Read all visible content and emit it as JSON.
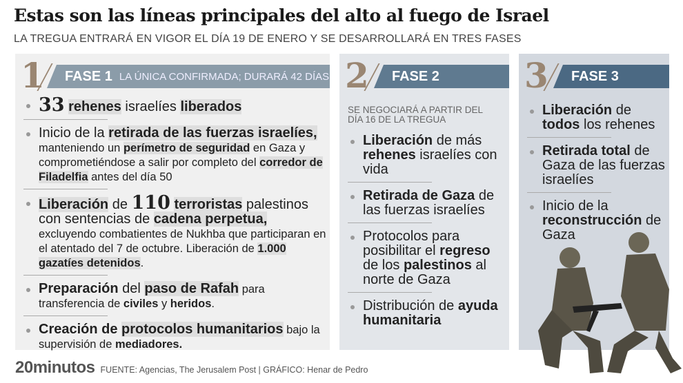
{
  "header": {
    "title": "Estas son las líneas principales del alto al fuego de Israel",
    "subtitle": "LA TREGUA ENTRARÁ EN VIGOR EL DÍA 19 DE ENERO Y SE DESARROLLARÁ EN TRES FASES"
  },
  "colors": {
    "panel1": "#f0f0f0",
    "panel2": "#e3e6ea",
    "panel3": "#d3d8df",
    "band1": "#8b9ca9",
    "band2": "#5f7a90",
    "band3": "#4b6983",
    "numeral": "#9a8672",
    "highlight": "#dedede"
  },
  "phases": [
    {
      "number": "1",
      "label": "FASE 1",
      "sublabel": "LA ÚNICA CONFIRMADA; DURARÁ 42 DÍAS",
      "items": [
        [
          {
            "t": "33",
            "s": "big"
          },
          {
            "t": " "
          },
          {
            "t": "rehenes",
            "s": "b hl"
          },
          {
            "t": " israelíes "
          },
          {
            "t": "liberados",
            "s": "b hl"
          }
        ],
        [
          {
            "t": "Inicio de la "
          },
          {
            "t": "retirada de las fuerzas israelíes,",
            "s": "b hl"
          },
          {
            "t": " manteniendo un ",
            "s": "sm"
          },
          {
            "t": "perímetro de seguridad",
            "s": "sm b hl"
          },
          {
            "t": " en Gaza y comprometiéndose a salir por completo del ",
            "s": "sm"
          },
          {
            "t": "corredor de Filadelfia",
            "s": "sm b hl"
          },
          {
            "t": " antes del día 50",
            "s": "sm"
          }
        ],
        [
          {
            "t": "Liberación",
            "s": "b hl"
          },
          {
            "t": " de "
          },
          {
            "t": "110",
            "s": "big"
          },
          {
            "t": " "
          },
          {
            "t": "terroristas",
            "s": "b hl"
          },
          {
            "t": " palestinos con sentencias de "
          },
          {
            "t": "cadena perpetua,",
            "s": "b hl"
          },
          {
            "t": " excluyendo combatientes de Nukhba que participaran en el atentado del 7 de octubre. Liberación de ",
            "s": "sm"
          },
          {
            "t": "1.000 gazatíes detenidos",
            "s": "sm b hl"
          },
          {
            "t": ".",
            "s": "sm"
          }
        ],
        [
          {
            "t": "Preparación",
            "s": "b"
          },
          {
            "t": " del "
          },
          {
            "t": "paso de Rafah",
            "s": "b hl"
          },
          {
            "t": " para transferencia de ",
            "s": "sm"
          },
          {
            "t": "civiles",
            "s": "sm b"
          },
          {
            "t": " y ",
            "s": "sm"
          },
          {
            "t": "heridos",
            "s": "sm b"
          },
          {
            "t": ".",
            "s": "sm"
          }
        ],
        [
          {
            "t": "Creación de ",
            "s": "b"
          },
          {
            "t": "protocolos humanitarios",
            "s": "b hl"
          },
          {
            "t": " bajo la supervisión de ",
            "s": "sm"
          },
          {
            "t": "mediadores.",
            "s": "sm b"
          }
        ]
      ]
    },
    {
      "number": "2",
      "label": "FASE 2",
      "note": "SE NEGOCIARÁ A PARTIR DEL DÍA 16 DE LA TREGUA",
      "items": [
        [
          {
            "t": "Liberación",
            "s": "b"
          },
          {
            "t": " de más "
          },
          {
            "t": "rehenes",
            "s": "b"
          },
          {
            "t": " israelíes con vida"
          }
        ],
        [
          {
            "t": "Retirada de Gaza",
            "s": "b"
          },
          {
            "t": " de las fuerzas israelíes"
          }
        ],
        [
          {
            "t": "Protocolos para posibilitar el "
          },
          {
            "t": "regreso",
            "s": "b"
          },
          {
            "t": " de los "
          },
          {
            "t": "palestinos",
            "s": "b"
          },
          {
            "t": " al norte de Gaza"
          }
        ],
        [
          {
            "t": "Distribución de "
          },
          {
            "t": "ayuda humanitaria",
            "s": "b"
          }
        ]
      ]
    },
    {
      "number": "3",
      "label": "FASE 3",
      "items": [
        [
          {
            "t": "Liberación",
            "s": "b"
          },
          {
            "t": " de "
          },
          {
            "t": "todos",
            "s": "b"
          },
          {
            "t": " los rehenes"
          }
        ],
        [
          {
            "t": "Retirada total",
            "s": "b"
          },
          {
            "t": " de Gaza de las fuerzas israelíes"
          }
        ],
        [
          {
            "t": "Inicio de la "
          },
          {
            "t": "reconstrucción",
            "s": "b"
          },
          {
            "t": " de Gaza"
          }
        ]
      ]
    }
  ],
  "footer": {
    "logo": "20minutos",
    "source": "FUENTE: Agencias, The Jerusalem Post  |  GRÁFICO: Henar de Pedro"
  }
}
